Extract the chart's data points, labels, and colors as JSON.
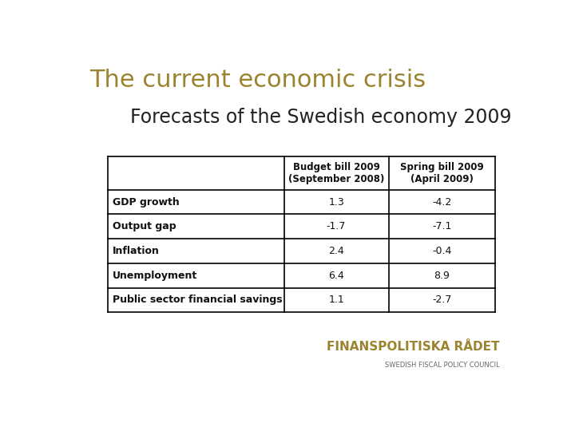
{
  "title": "The current economic crisis",
  "subtitle": "Forecasts of the Swedish economy 2009",
  "title_color": "#9a8430",
  "subtitle_color": "#222222",
  "background_color": "#ffffff",
  "table": {
    "col_headers": [
      "",
      "Budget bill 2009\n(September 2008)",
      "Spring bill 2009\n(April 2009)"
    ],
    "rows": [
      [
        "GDP growth",
        "1.3",
        "-4.2"
      ],
      [
        "Output gap",
        "-1.7",
        "-7.1"
      ],
      [
        "Inflation",
        "2.4",
        "-0.4"
      ],
      [
        "Unemployment",
        "6.4",
        "8.9"
      ],
      [
        "Public sector financial savings",
        "1.1",
        "-2.7"
      ]
    ]
  },
  "logo_text": "FINANSPOLITISKA RÅDET",
  "logo_subtext": "SWEDISH FISCAL POLICY COUNCIL",
  "logo_color": "#9a8430",
  "logo_subtext_color": "#666666"
}
